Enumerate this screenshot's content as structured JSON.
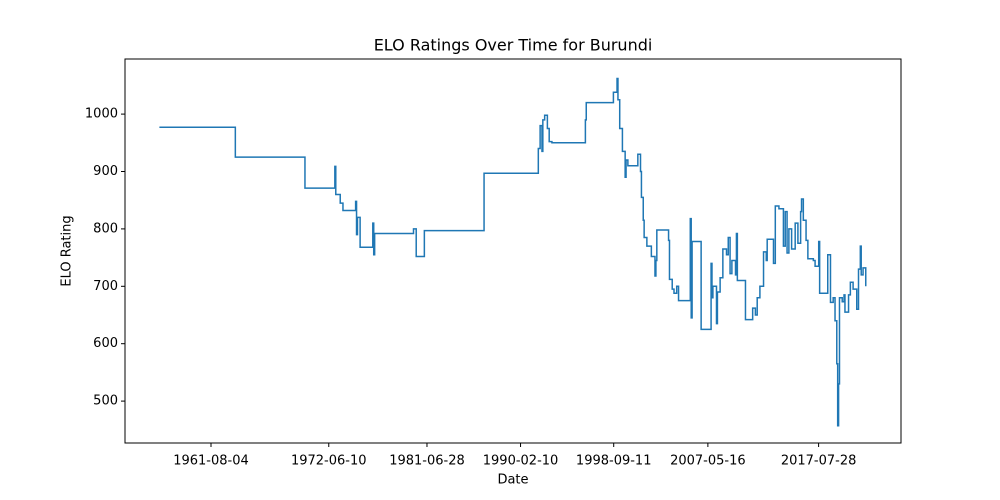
{
  "chart_data": {
    "type": "line",
    "step": "post",
    "title": "ELO Ratings Over Time for Burundi",
    "x_label": "Date",
    "y_label": "ELO Rating",
    "xlim": [
      "1953-09",
      "2025-03"
    ],
    "xticks": [
      "1961-08-04",
      "1972-06-10",
      "1981-06-28",
      "1990-02-10",
      "1998-09-11",
      "2007-05-16",
      "2017-07-28"
    ],
    "ylim": [
      427,
      1096
    ],
    "yticks": [
      500,
      600,
      700,
      800,
      900,
      1000
    ],
    "grid": false,
    "series": [
      {
        "name": "Burundi",
        "color": "#1f77b4",
        "x": [
          "1956-11",
          "1963-11",
          "1970-04",
          "1973-01",
          "1973-02",
          "1973-07",
          "1973-10",
          "1974-12",
          "1975-01",
          "1975-02",
          "1975-05",
          "1976-07",
          "1976-08",
          "1976-09",
          "1980-04",
          "1980-07",
          "1981-04",
          "1986-10",
          "1991-10",
          "1991-12",
          "1992-02",
          "1992-03",
          "1992-05",
          "1992-08",
          "1992-10",
          "1993-01",
          "1996-02",
          "1996-03",
          "1998-09",
          "1999-01",
          "1999-02",
          "1999-04",
          "1999-07",
          "1999-10",
          "1999-11",
          "2000-01",
          "2000-12",
          "2001-03",
          "2001-04",
          "2001-06",
          "2001-07",
          "2001-10",
          "2002-03",
          "2002-07",
          "2002-08",
          "2002-09",
          "2003-10",
          "2003-11",
          "2004-02",
          "2004-04",
          "2004-07",
          "2004-09",
          "2005-10",
          "2005-11",
          "2005-12",
          "2006-10",
          "2007-09",
          "2007-10",
          "2007-11",
          "2008-03",
          "2008-04",
          "2008-07",
          "2008-10",
          "2009-02",
          "2009-04",
          "2009-06",
          "2009-08",
          "2009-12",
          "2010-01",
          "2010-02",
          "2010-11",
          "2011-07",
          "2011-10",
          "2011-12",
          "2012-03",
          "2012-07",
          "2012-10",
          "2012-11",
          "2013-06",
          "2013-08",
          "2013-12",
          "2014-05",
          "2014-07",
          "2014-09",
          "2014-11",
          "2015-02",
          "2015-06",
          "2015-09",
          "2015-12",
          "2016-01",
          "2016-03",
          "2016-06",
          "2016-08",
          "2017-02",
          "2017-04",
          "2017-08",
          "2017-09",
          "2018-06",
          "2018-09",
          "2018-12",
          "2019-02",
          "2019-04",
          "2019-05",
          "2019-06",
          "2019-07",
          "2019-10",
          "2019-12",
          "2020-01",
          "2020-05",
          "2020-07",
          "2020-10",
          "2021-02",
          "2021-04",
          "2021-06",
          "2021-07",
          "2021-09",
          "2021-12"
        ],
        "values": [
          977,
          925,
          871,
          909,
          860,
          845,
          832,
          848,
          790,
          820,
          768,
          810,
          755,
          792,
          800,
          752,
          797,
          897,
          940,
          980,
          935,
          990,
          998,
          975,
          952,
          950,
          990,
          1020,
          1038,
          1062,
          1025,
          975,
          935,
          890,
          920,
          910,
          930,
          900,
          855,
          815,
          785,
          770,
          752,
          718,
          745,
          798,
          780,
          712,
          695,
          688,
          700,
          675,
          818,
          645,
          778,
          625,
          740,
          680,
          700,
          635,
          690,
          715,
          765,
          755,
          785,
          722,
          745,
          720,
          792,
          710,
          642,
          662,
          650,
          680,
          700,
          760,
          745,
          782,
          740,
          840,
          835,
          770,
          830,
          758,
          800,
          765,
          810,
          775,
          830,
          852,
          815,
          780,
          748,
          745,
          735,
          778,
          688,
          755,
          672,
          680,
          640,
          565,
          457,
          530,
          680,
          673,
          685,
          655,
          685,
          707,
          695,
          660,
          730,
          770,
          720,
          732,
          700
        ]
      }
    ]
  }
}
